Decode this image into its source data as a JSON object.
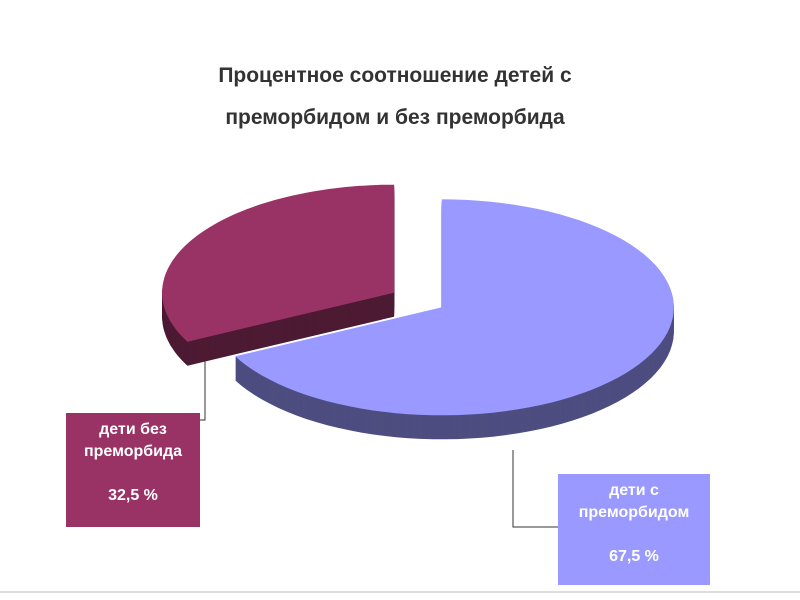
{
  "chart_data": {
    "type": "pie",
    "title": [
      "Процентное соотношение детей с",
      "преморбидом и без преморбида"
    ],
    "categories": [
      "дети с преморбидом",
      "дети без преморбида"
    ],
    "values": [
      67.5,
      32.5
    ],
    "value_labels": [
      "67,5 %",
      "32,5 %"
    ],
    "colors": [
      "#9999ff",
      "#993366"
    ]
  }
}
